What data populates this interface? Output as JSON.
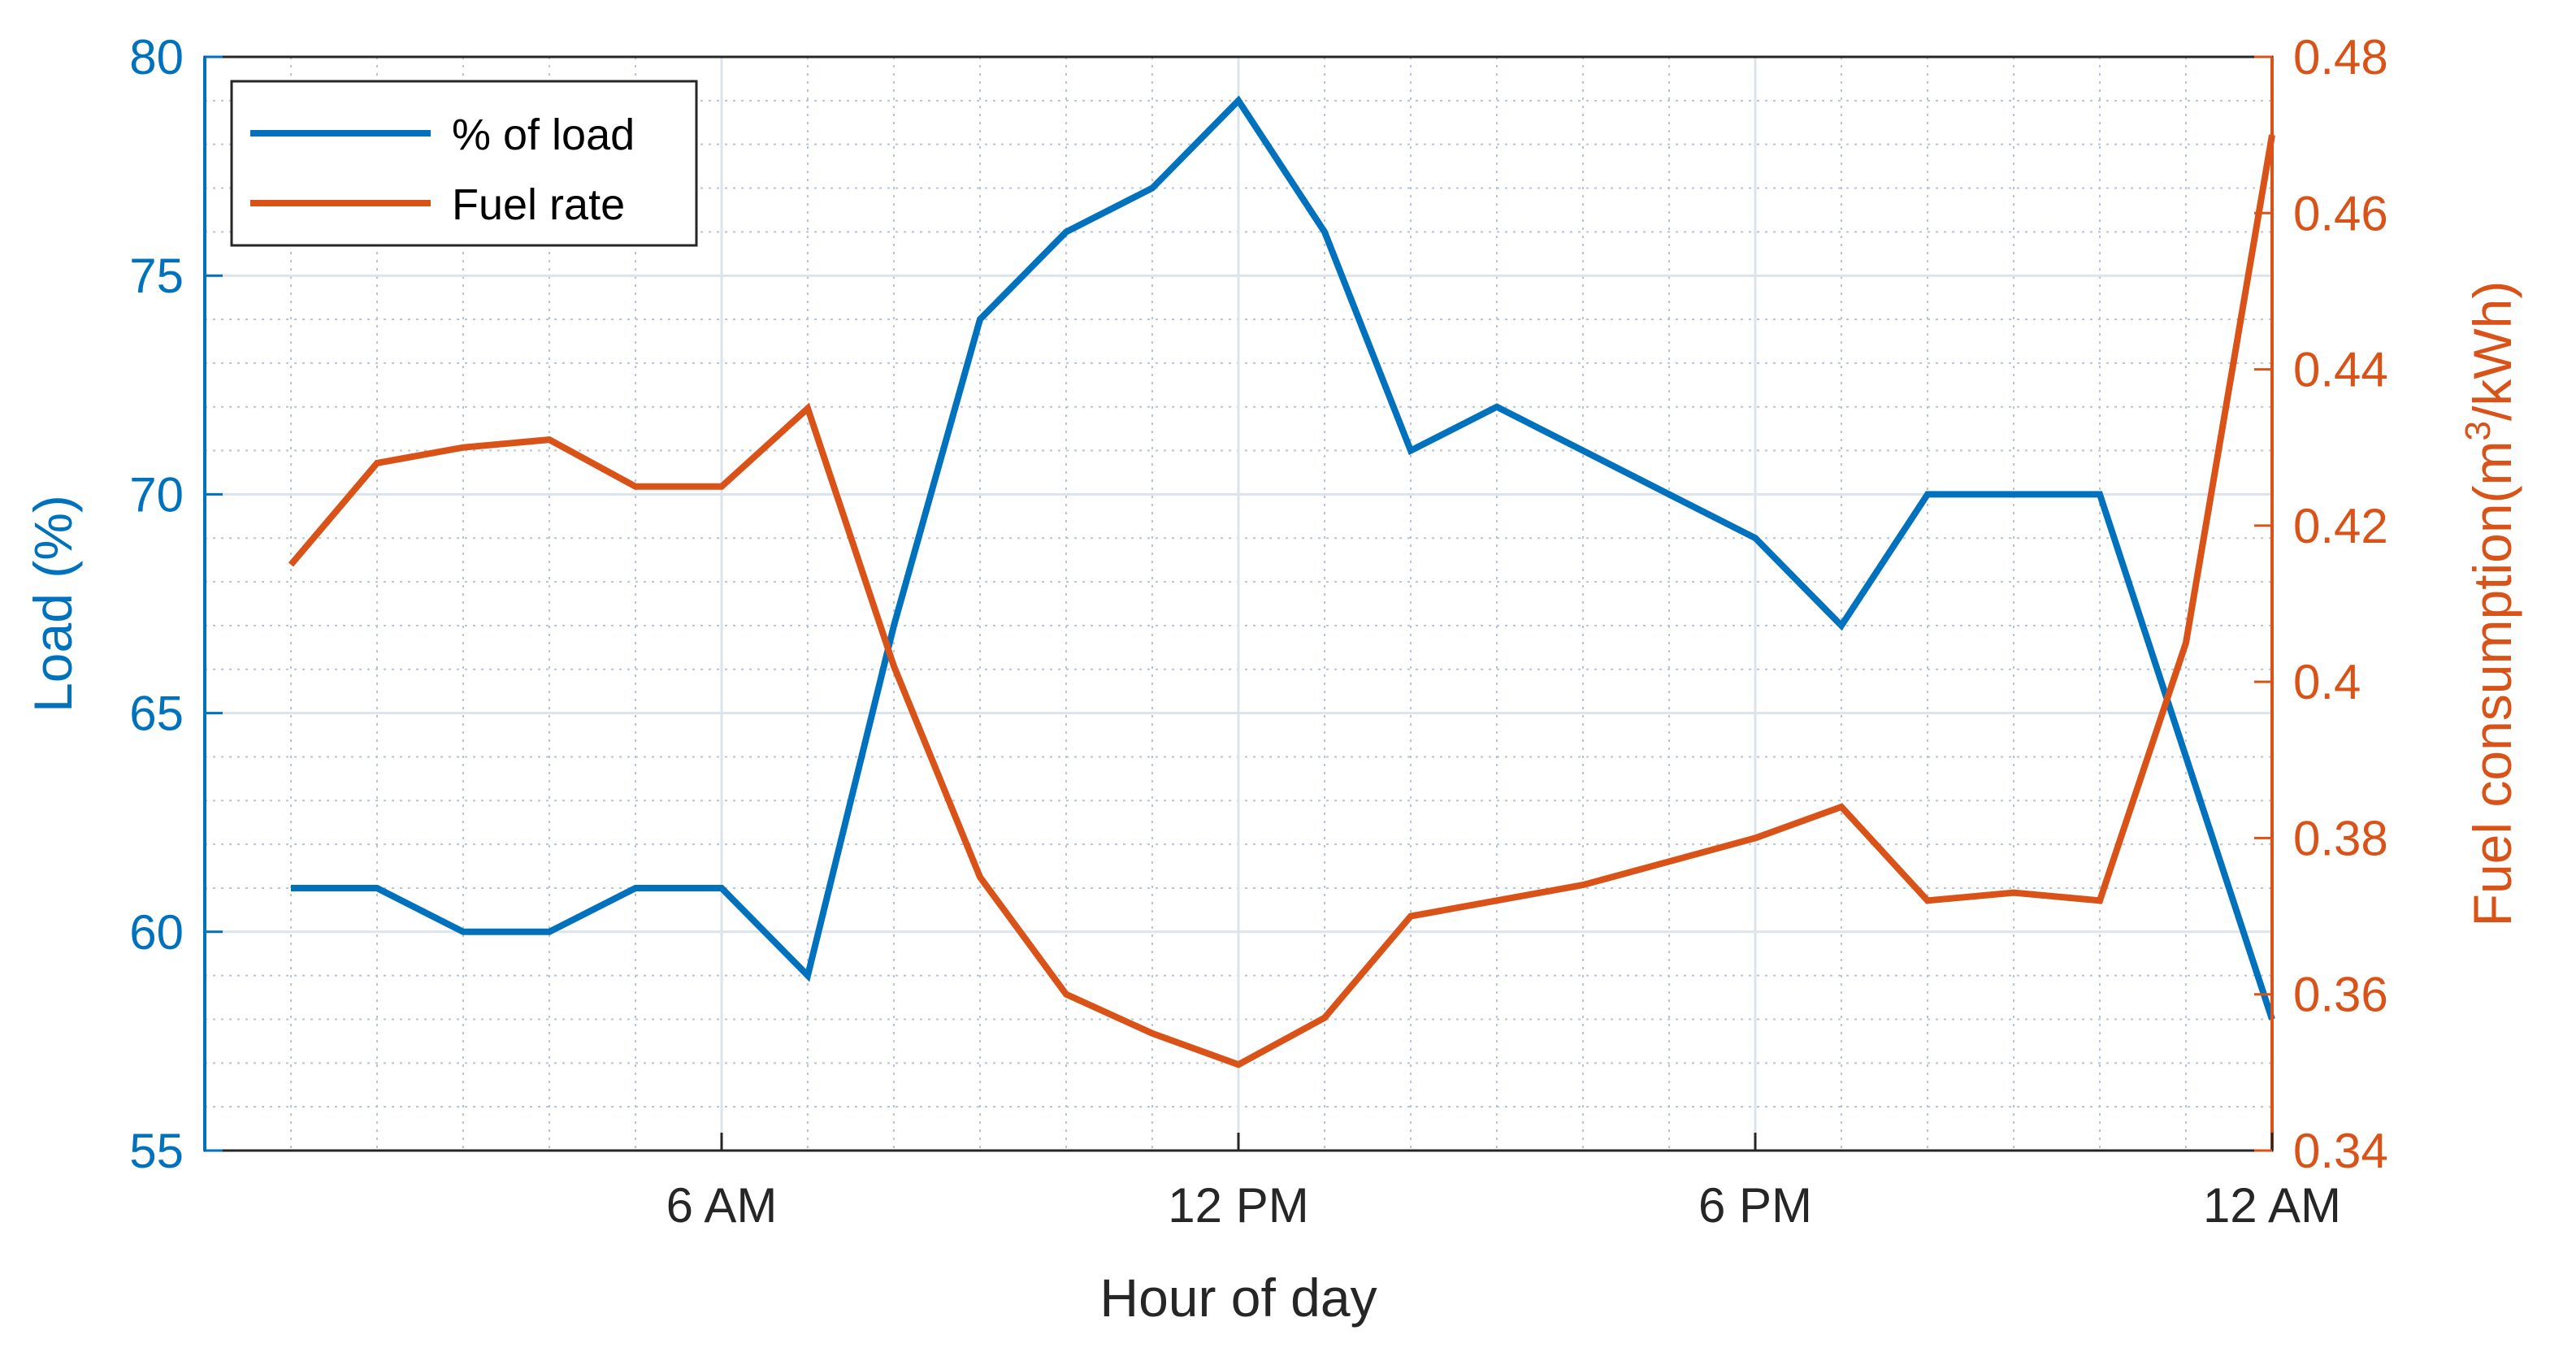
{
  "chart_data": {
    "type": "line",
    "xlabel": "Hour of day",
    "ylabel_left": "Load (%)",
    "ylabel_right_main": "Fuel consumption(m",
    "ylabel_right_sup": "3",
    "ylabel_right_tail": "/kWh)",
    "x_range": [
      0,
      24
    ],
    "x_ticks": [
      6,
      12,
      18,
      24
    ],
    "x_ticklabels": [
      "6 AM",
      "12 PM",
      "6 PM",
      "12 AM"
    ],
    "y_left_range": [
      55,
      80
    ],
    "y_left_ticks": [
      55,
      60,
      65,
      70,
      75,
      80
    ],
    "y_left_ticklabels": [
      "55",
      "60",
      "65",
      "70",
      "75",
      "80"
    ],
    "y_right_range": [
      0.34,
      0.48
    ],
    "y_right_ticks": [
      0.34,
      0.36,
      0.38,
      0.4,
      0.42,
      0.44,
      0.46,
      0.48
    ],
    "y_right_ticklabels": [
      "0.34",
      "0.36",
      "0.38",
      "0.4",
      "0.42",
      "0.44",
      "0.46",
      "0.48"
    ],
    "grid": true,
    "minor_grid": true,
    "legend_position": "top-left",
    "series": [
      {
        "name": "% of load",
        "axis": "left",
        "color": "#0072BD",
        "x": [
          1,
          2,
          3,
          4,
          5,
          6,
          7,
          8,
          9,
          10,
          11,
          12,
          13,
          14,
          15,
          16,
          17,
          18,
          19,
          20,
          21,
          22,
          23,
          24
        ],
        "y": [
          61,
          61,
          60,
          60,
          61,
          61,
          59,
          67,
          74,
          76,
          77,
          79,
          76,
          71,
          72,
          71,
          70,
          69,
          67,
          70,
          70,
          70,
          64,
          58
        ]
      },
      {
        "name": "Fuel rate",
        "axis": "right",
        "color": "#D95319",
        "x": [
          1,
          2,
          3,
          4,
          5,
          6,
          7,
          8,
          9,
          10,
          11,
          12,
          13,
          14,
          15,
          16,
          17,
          18,
          19,
          20,
          21,
          22,
          23,
          24
        ],
        "y": [
          0.415,
          0.428,
          0.43,
          0.431,
          0.425,
          0.425,
          0.435,
          0.402,
          0.375,
          0.36,
          0.355,
          0.351,
          0.357,
          0.37,
          0.372,
          0.374,
          0.377,
          0.38,
          0.384,
          0.372,
          0.373,
          0.372,
          0.405,
          0.47
        ]
      }
    ]
  }
}
